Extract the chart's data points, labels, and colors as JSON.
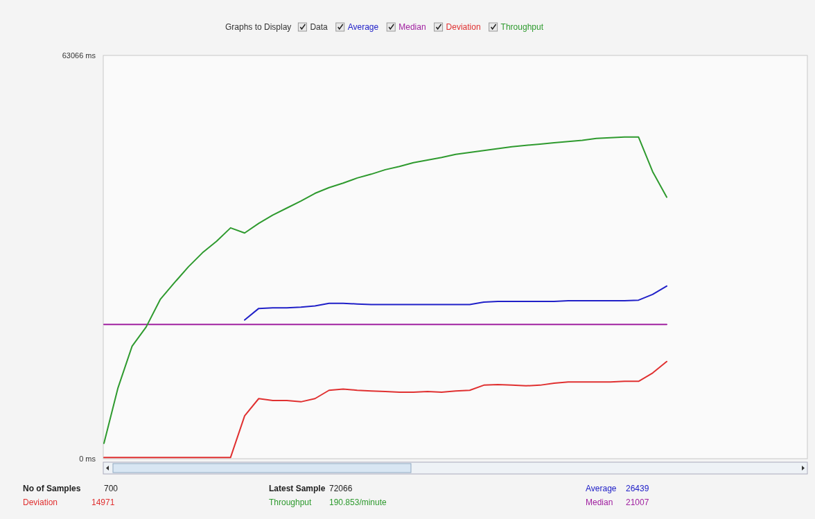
{
  "chart_data": {
    "type": "line",
    "legend_title": "Graphs to Display",
    "legend": "top",
    "categories": [
      null,
      null,
      null,
      null,
      null,
      null,
      null,
      null,
      null,
      null,
      null,
      null,
      null,
      null,
      null,
      null,
      null,
      null,
      null,
      null,
      null,
      null,
      null,
      null,
      null,
      null,
      null,
      null,
      null,
      null,
      null,
      null,
      null,
      null,
      null,
      null,
      null,
      null,
      null,
      null,
      null,
      null,
      null,
      null,
      null,
      null,
      null,
      null,
      null,
      null,
      null
    ],
    "ylim": [
      0,
      63066
    ],
    "yticks": [
      {
        "value": 63066,
        "label": "63066 ms"
      },
      {
        "value": 0,
        "label": "0 ms"
      }
    ],
    "marker": "none",
    "line_style": "solid",
    "series": [
      {
        "name": "Average",
        "color": "#2020c8",
        "values": [
          null,
          null,
          null,
          null,
          null,
          null,
          null,
          null,
          null,
          null,
          21700,
          23500,
          23600,
          23600,
          23700,
          23900,
          24300,
          24300,
          24200,
          24100,
          24100,
          24100,
          24100,
          24100,
          24100,
          24100,
          24100,
          24500,
          24600,
          24600,
          24600,
          24600,
          24600,
          24700,
          24700,
          24700,
          24700,
          24700,
          24800,
          25700,
          27000,
          null,
          null,
          null,
          null,
          null,
          null,
          null,
          null,
          null,
          null
        ]
      },
      {
        "name": "Median",
        "color": "#a020a0",
        "values": [
          21000,
          21000,
          21000,
          21000,
          21000,
          21000,
          21000,
          21000,
          21000,
          21000,
          21000,
          21000,
          21000,
          21000,
          21000,
          21000,
          21000,
          21000,
          21000,
          21000,
          21000,
          21000,
          21000,
          21000,
          21000,
          21000,
          21000,
          21000,
          21000,
          21000,
          21000,
          21000,
          21000,
          21000,
          21000,
          21000,
          21000,
          21000,
          21000,
          21000,
          21000,
          null,
          null,
          null,
          null,
          null,
          null,
          null,
          null,
          null,
          null
        ]
      },
      {
        "name": "Deviation",
        "color": "#e03030",
        "values": [
          200,
          200,
          200,
          200,
          200,
          200,
          200,
          200,
          200,
          200,
          6700,
          9400,
          9100,
          9100,
          8900,
          9400,
          10700,
          10900,
          10700,
          10600,
          10500,
          10400,
          10400,
          10500,
          10400,
          10600,
          10700,
          11500,
          11600,
          11500,
          11400,
          11500,
          11800,
          12000,
          12000,
          12000,
          12000,
          12100,
          12100,
          13400,
          15200,
          null,
          null,
          null,
          null,
          null,
          null,
          null,
          null,
          null,
          null
        ]
      },
      {
        "name": "Throughput",
        "color": "#2e9a2e",
        "values": [
          2400,
          11100,
          17600,
          20600,
          24900,
          27500,
          30000,
          32200,
          34000,
          36100,
          35300,
          36800,
          38100,
          39200,
          40300,
          41500,
          42400,
          43100,
          43900,
          44500,
          45200,
          45700,
          46300,
          46700,
          47100,
          47600,
          47900,
          48200,
          48500,
          48800,
          49000,
          49200,
          49400,
          49600,
          49800,
          50100,
          50200,
          50300,
          50300,
          44900,
          40900,
          null,
          null,
          null,
          null,
          null,
          null,
          null,
          null,
          null,
          null
        ]
      }
    ],
    "annotations": [
      "Data",
      "No of Samples",
      "700",
      "Deviation",
      "14971",
      "Latest Sample",
      "72066",
      "Throughput",
      "190.853/minute",
      "Average",
      "26439",
      "Median",
      "21007"
    ]
  }
}
